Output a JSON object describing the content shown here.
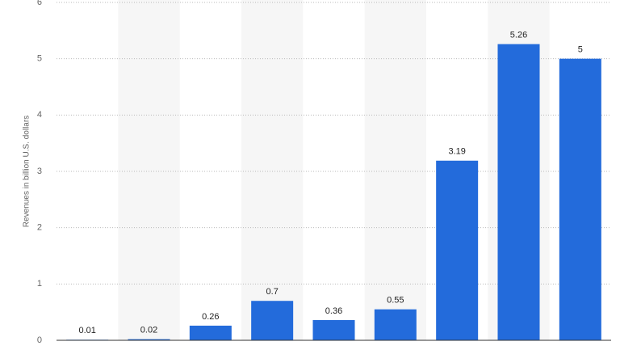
{
  "chart_data": {
    "type": "bar",
    "y_axis_label": "Revenues in billion U.S. dollars",
    "categories": [
      null,
      null,
      null,
      null,
      null,
      null,
      null,
      null,
      null
    ],
    "values": [
      0.01,
      0.02,
      0.26,
      0.7,
      0.36,
      0.55,
      3.19,
      5.26,
      5
    ],
    "color": "#236bdb",
    "ylim": [
      0,
      6
    ],
    "yticks": [
      0,
      1,
      2,
      3,
      4,
      5,
      6
    ],
    "grid": true
  }
}
